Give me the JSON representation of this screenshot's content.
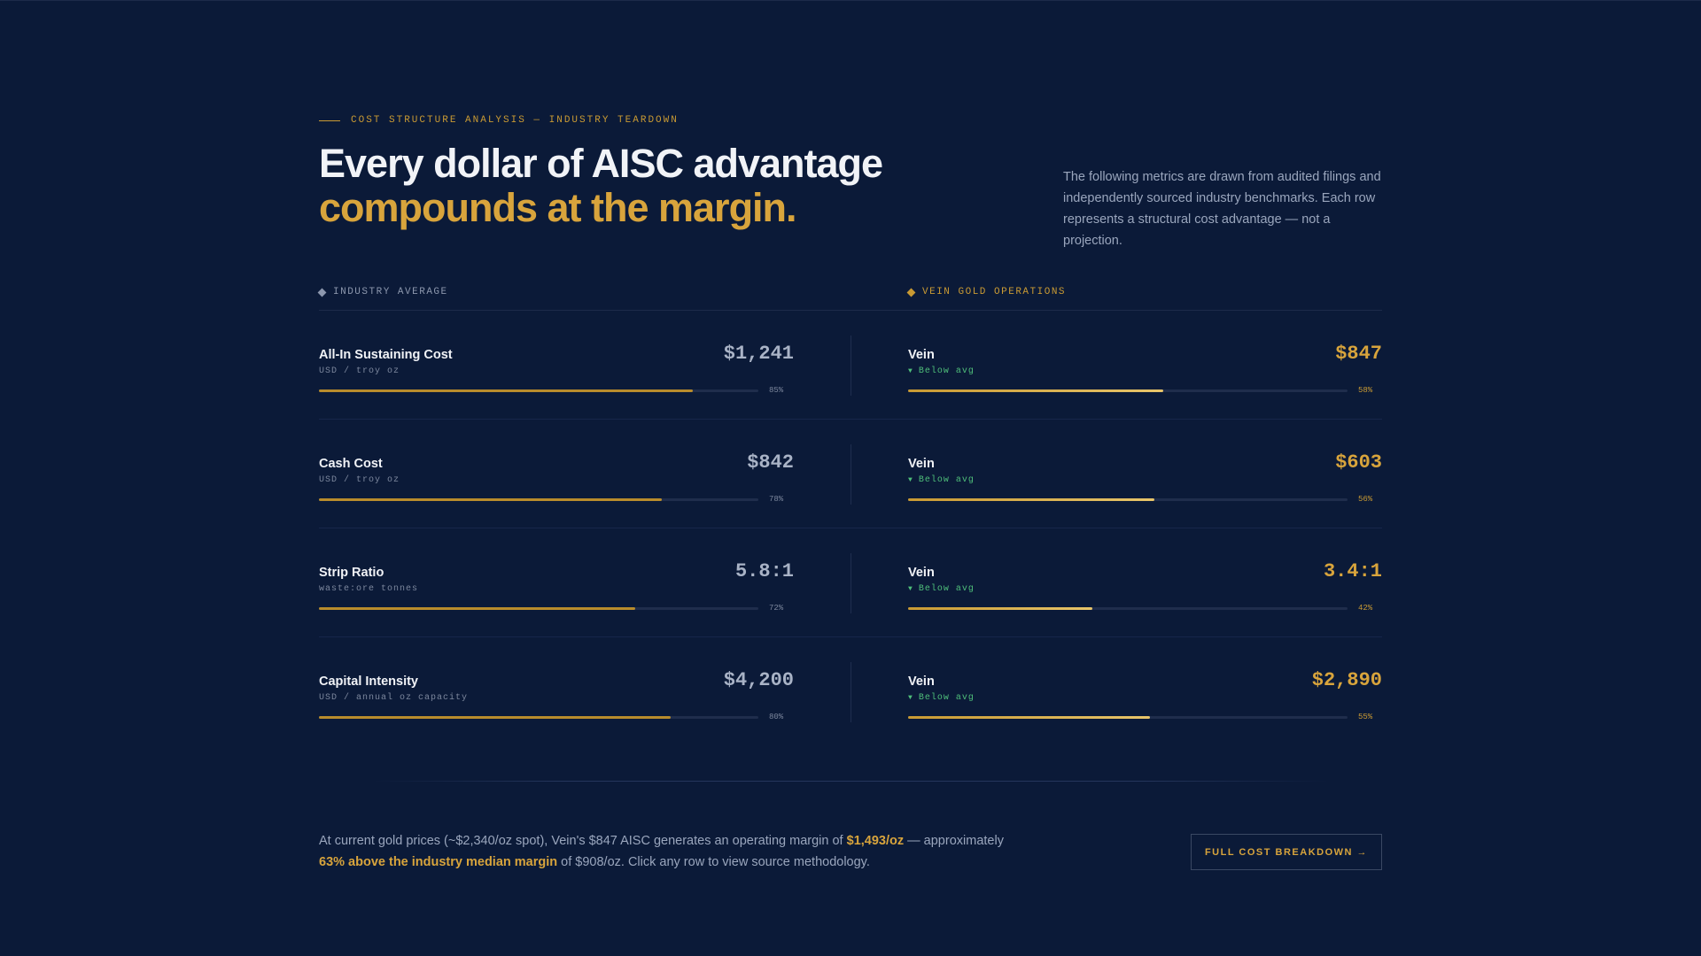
{
  "header": {
    "eyebrow": "COST STRUCTURE ANALYSIS — INDUSTRY TEARDOWN",
    "title_line1": "Every dollar of AISC advantage",
    "title_line2": "compounds at the margin.",
    "intro": "The following metrics are drawn from audited filings and independently sourced industry benchmarks. Each row represents a structural cost advantage — not a projection."
  },
  "columns": {
    "left": "INDUSTRY AVERAGE",
    "right": "VEIN GOLD OPERATIONS"
  },
  "rows": [
    {
      "industry": {
        "name": "All-In Sustaining Cost",
        "unit": "USD / troy oz",
        "value": "$1,241",
        "pct_label": "85%",
        "pct": 0.85
      },
      "vein": {
        "name": "Vein",
        "status": "Below avg",
        "value": "$847",
        "pct_label": "58%",
        "pct": 0.58
      }
    },
    {
      "industry": {
        "name": "Cash Cost",
        "unit": "USD / troy oz",
        "value": "$842",
        "pct_label": "78%",
        "pct": 0.78
      },
      "vein": {
        "name": "Vein",
        "status": "Below avg",
        "value": "$603",
        "pct_label": "56%",
        "pct": 0.56
      }
    },
    {
      "industry": {
        "name": "Strip Ratio",
        "unit": "waste:ore tonnes",
        "value": "5.8:1",
        "pct_label": "72%",
        "pct": 0.72
      },
      "vein": {
        "name": "Vein",
        "status": "Below avg",
        "value": "3.4:1",
        "pct_label": "42%",
        "pct": 0.42
      }
    },
    {
      "industry": {
        "name": "Capital Intensity",
        "unit": "USD / annual oz capacity",
        "value": "$4,200",
        "pct_label": "80%",
        "pct": 0.8
      },
      "vein": {
        "name": "Vein",
        "status": "Below avg",
        "value": "$2,890",
        "pct_label": "55%",
        "pct": 0.55
      }
    }
  ],
  "footer": {
    "summary_1": "At current gold prices (~$2,340/oz spot), Vein's $847 AISC generates an operating margin of ",
    "summary_hl1": "$1,493/oz",
    "summary_2": " — approximately ",
    "summary_hl2": "63% above the industry median margin",
    "summary_3": " of $908/oz. Click any row to view source methodology.",
    "cta_label": "FULL COST BREAKDOWN →"
  },
  "icons": {
    "status_icon": "triangle-down-icon",
    "column_marker": "diamond-icon"
  },
  "colors": {
    "background": "#0b1a38",
    "accent_gold": "#d8a43c",
    "positive_green": "#4fbf7a"
  }
}
